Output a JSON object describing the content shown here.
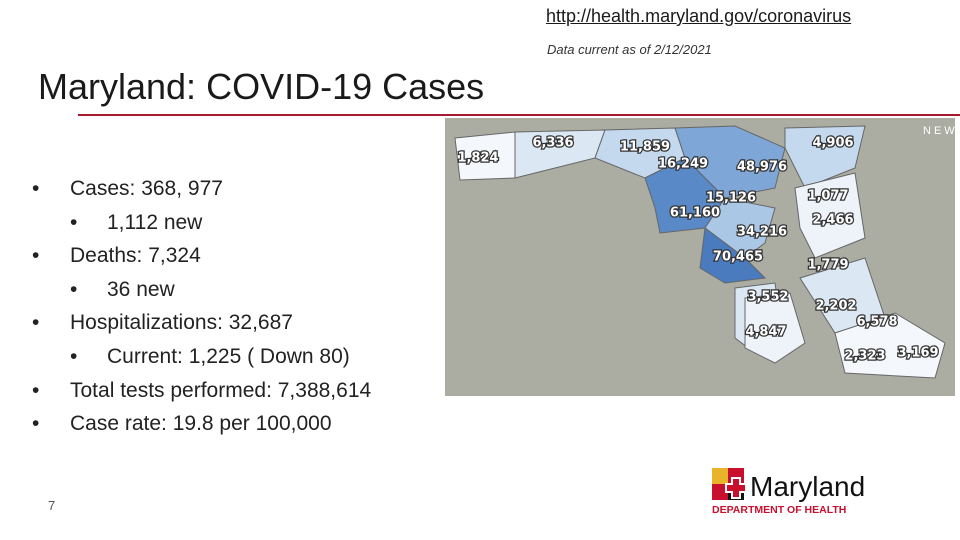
{
  "link": "http://health.maryland.gov/coronavirus",
  "data_note": "Data current as of 2/12/2021",
  "title": "Maryland: COVID-19 Cases",
  "bullets": [
    {
      "text": "Cases: 368, 977",
      "sub": "1,112 new"
    },
    {
      "text": "Deaths: 7,324",
      "sub": "36 new"
    },
    {
      "text": "Hospitalizations: 32,687",
      "sub": "Current: 1,225 ( Down 80)"
    },
    {
      "text": "Total tests performed: 7,388,614"
    },
    {
      "text": "Case rate: 19.8 per 100,000"
    }
  ],
  "map": {
    "corner_text": "NEW",
    "labels": [
      "1,824",
      "6,336",
      "11,859",
      "4,906",
      "16,249",
      "48,976",
      "15,126",
      "61,160",
      "1,077",
      "2,466",
      "34,216",
      "70,465",
      "1,779",
      "3,552",
      "2,202",
      "4,847",
      "6,578",
      "2,323",
      "3,169"
    ]
  },
  "page_number": "7",
  "logo": {
    "name": "Maryland",
    "subtitle": "DEPARTMENT OF HEALTH"
  }
}
